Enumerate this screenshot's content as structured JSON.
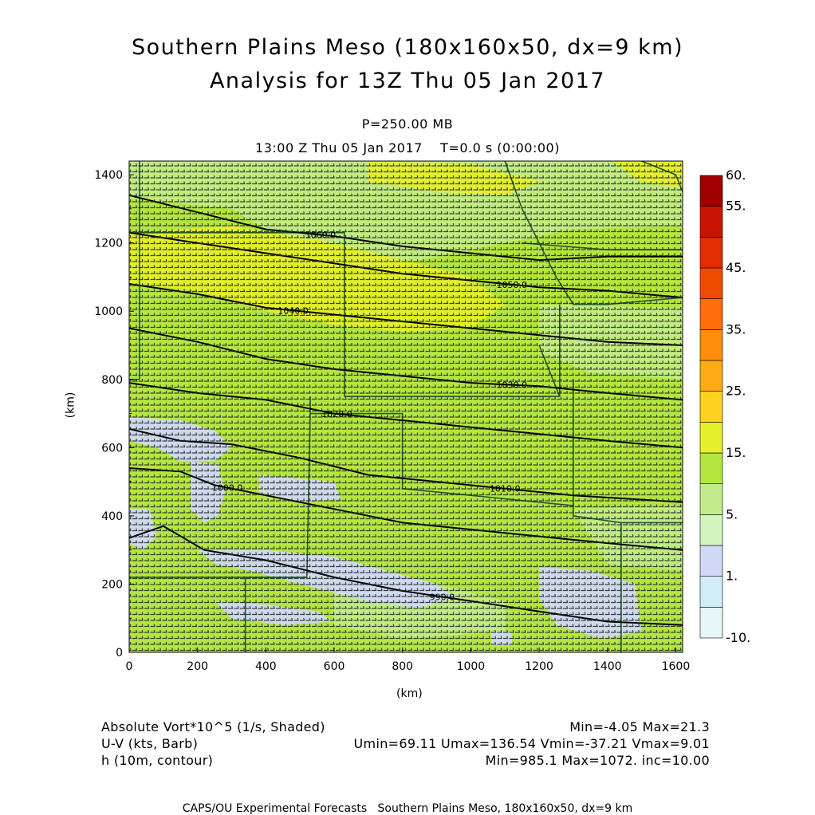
{
  "chart_data": {
    "type": "heatmap",
    "title": "Southern Plains Meso (180x160x50, dx=9 km)",
    "subtitle": "Analysis for 13Z Thu 05 Jan 2017",
    "level_label": "P=250.00 MB",
    "time_label": "13:00 Z Thu 05 Jan 2017    T=0.0 s (0:00:00)",
    "xlabel": "(km)",
    "ylabel": "(km)",
    "xlim": [
      0,
      1620
    ],
    "ylim": [
      0,
      1440
    ],
    "x_ticks": [
      0,
      200,
      400,
      600,
      800,
      1000,
      1200,
      1400,
      1600
    ],
    "y_ticks": [
      0,
      200,
      400,
      600,
      800,
      1000,
      1200,
      1400
    ],
    "colorbar": {
      "levels": [
        "-10.",
        "1.",
        "5.",
        "15.",
        "25.",
        "35.",
        "45.",
        "55.",
        "60."
      ],
      "colors": [
        "#e6f7fa",
        "#d2ecf7",
        "#d0d8f5",
        "#d2f5c0",
        "#c2ec8c",
        "#b4e640",
        "#e6f02a",
        "#ffd21e",
        "#ffaa14",
        "#ff8c0a",
        "#ff6e0a",
        "#f04b00",
        "#e12d00",
        "#c81400",
        "#a00000"
      ]
    },
    "field_colors": {
      "background": "#b4e640",
      "moderate": "#c2ec8c",
      "high": "#e6f02a",
      "low": "#d0d8f5"
    },
    "contours": {
      "variable": "h (10m)",
      "interval": 10,
      "lines": [
        {
          "label": "1060.0",
          "points": [
            [
              0,
              1340
            ],
            [
              200,
              1290
            ],
            [
              400,
              1240
            ],
            [
              600,
              1220
            ],
            [
              800,
              1190
            ],
            [
              1000,
              1170
            ],
            [
              1200,
              1150
            ],
            [
              1400,
              1160
            ],
            [
              1620,
              1160
            ]
          ]
        },
        {
          "label": "1050.0",
          "points": [
            [
              0,
              1230
            ],
            [
              200,
              1200
            ],
            [
              400,
              1170
            ],
            [
              600,
              1140
            ],
            [
              800,
              1110
            ],
            [
              1000,
              1090
            ],
            [
              1200,
              1070
            ],
            [
              1400,
              1060
            ],
            [
              1620,
              1040
            ]
          ]
        },
        {
          "label": "1040.0",
          "points": [
            [
              0,
              1080
            ],
            [
              200,
              1050
            ],
            [
              400,
              1010
            ],
            [
              600,
              990
            ],
            [
              800,
              970
            ],
            [
              1000,
              950
            ],
            [
              1200,
              930
            ],
            [
              1400,
              910
            ],
            [
              1620,
              900
            ]
          ]
        },
        {
          "label": "1030.0",
          "points": [
            [
              0,
              950
            ],
            [
              200,
              910
            ],
            [
              400,
              860
            ],
            [
              600,
              830
            ],
            [
              800,
              810
            ],
            [
              1000,
              790
            ],
            [
              1200,
              780
            ],
            [
              1400,
              760
            ],
            [
              1620,
              740
            ]
          ]
        },
        {
          "label": "1020.0",
          "points": [
            [
              0,
              790
            ],
            [
              200,
              760
            ],
            [
              400,
              740
            ],
            [
              600,
              700
            ],
            [
              800,
              680
            ],
            [
              1000,
              660
            ],
            [
              1200,
              640
            ],
            [
              1400,
              620
            ],
            [
              1620,
              600
            ]
          ]
        },
        {
          "label": "1010.0",
          "points": [
            [
              0,
              655
            ],
            [
              150,
              620
            ],
            [
              300,
              610
            ],
            [
              500,
              570
            ],
            [
              700,
              520
            ],
            [
              900,
              500
            ],
            [
              1100,
              480
            ],
            [
              1300,
              460
            ],
            [
              1620,
              440
            ]
          ]
        },
        {
          "label": "1000.0",
          "points": [
            [
              0,
              540
            ],
            [
              150,
              530
            ],
            [
              250,
              490
            ],
            [
              400,
              460
            ],
            [
              600,
              420
            ],
            [
              800,
              380
            ],
            [
              1000,
              360
            ],
            [
              1200,
              340
            ],
            [
              1400,
              320
            ],
            [
              1620,
              300
            ]
          ]
        },
        {
          "label": "990.0",
          "points": [
            [
              0,
              335
            ],
            [
              100,
              370
            ],
            [
              220,
              300
            ],
            [
              400,
              270
            ],
            [
              600,
              220
            ],
            [
              800,
              180
            ],
            [
              1000,
              150
            ],
            [
              1200,
              120
            ],
            [
              1400,
              90
            ],
            [
              1620,
              80
            ]
          ]
        }
      ]
    },
    "stats": {
      "vort_label": "Absolute Vort*10^5 (1/s, Shaded)",
      "vort_range": "Min=-4.05 Max=21.3",
      "wind_label": "U-V (kts, Barb)",
      "wind_range": "Umin=69.11 Umax=136.54 Vmin=-37.21 Vmax=9.01",
      "height_label": "h (10m, contour)",
      "height_range": "Min=985.1 Max=1072. inc=10.00"
    },
    "footer": "CAPS/OU Experimental Forecasts   Southern Plains Meso, 180x160x50, dx=9 km"
  }
}
